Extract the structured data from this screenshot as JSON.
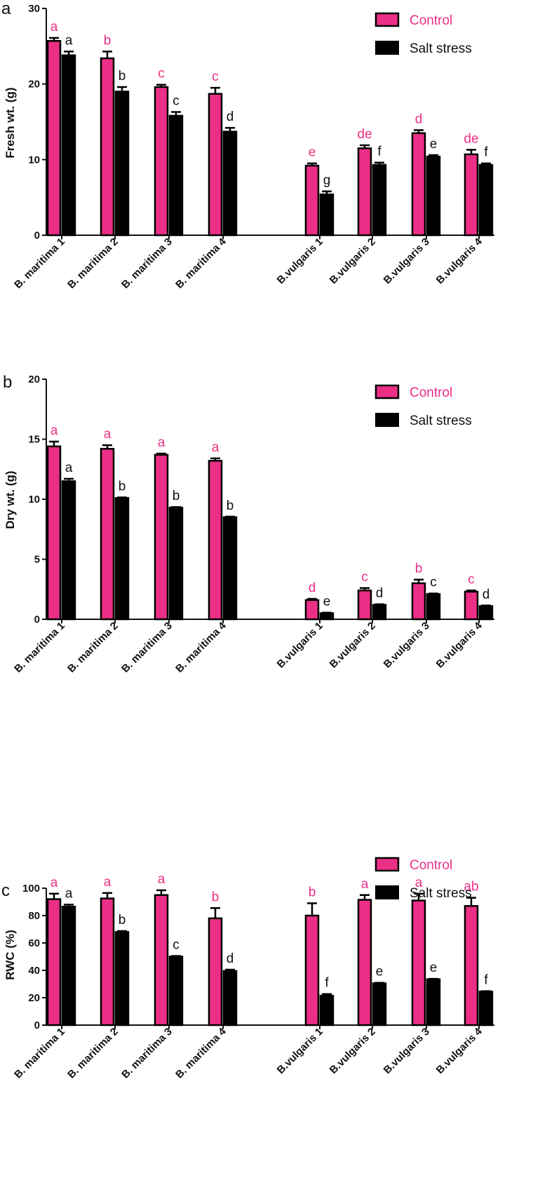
{
  "colors": {
    "control": "#ec2f86",
    "salt": "#000000",
    "axis": "#111111"
  },
  "chart_data": [
    {
      "panel": "a",
      "type": "bar",
      "ylabel": "Fresh wt. (g)",
      "ylim": [
        0,
        30
      ],
      "yticks": [
        0,
        10,
        20,
        30
      ],
      "categories": [
        "B. maritima 1",
        "B. maritima 2",
        "B. maritima 3",
        "B. maritima 4",
        "B.vulgaris 1",
        "B.vulgaris 2",
        "B.vulgaris 3",
        "B.vulgaris 4"
      ],
      "legend": [
        "Control",
        "Salt stress"
      ],
      "series": [
        {
          "name": "Control",
          "values": [
            25.7,
            23.4,
            19.6,
            18.7,
            9.2,
            11.5,
            13.5,
            10.7
          ],
          "errors": [
            0.4,
            0.9,
            0.3,
            0.8,
            0.3,
            0.4,
            0.4,
            0.6
          ],
          "letters": [
            "a",
            "b",
            "c",
            "c",
            "e",
            "de",
            "d",
            "de"
          ]
        },
        {
          "name": "Salt stress",
          "values": [
            23.8,
            19.0,
            15.8,
            13.7,
            5.4,
            9.3,
            10.4,
            9.3
          ],
          "errors": [
            0.5,
            0.6,
            0.5,
            0.5,
            0.4,
            0.3,
            0.2,
            0.2
          ],
          "letters": [
            "a",
            "b",
            "c",
            "d",
            "g",
            "f",
            "e",
            "f"
          ]
        }
      ]
    },
    {
      "panel": "b",
      "type": "bar",
      "ylabel": "Dry wt. (g)",
      "ylim": [
        0,
        20
      ],
      "yticks": [
        0,
        5,
        10,
        15,
        20
      ],
      "categories": [
        "B. maritima 1",
        "B. maritima 2",
        "B. maritima 3",
        "B. maritima 4",
        "B.vulgaris 1",
        "B.vulgaris 2",
        "B.vulgaris 3",
        "B.vulgaris 4"
      ],
      "legend": [
        "Control",
        "Salt stress"
      ],
      "series": [
        {
          "name": "Control",
          "values": [
            14.4,
            14.2,
            13.7,
            13.2,
            1.6,
            2.4,
            3.0,
            2.3
          ],
          "errors": [
            0.4,
            0.3,
            0.1,
            0.2,
            0.1,
            0.2,
            0.3,
            0.1
          ],
          "letters": [
            "a",
            "a",
            "a",
            "a",
            "d",
            "c",
            "b",
            "c"
          ]
        },
        {
          "name": "Salt stress",
          "values": [
            11.5,
            10.1,
            9.3,
            8.5,
            0.5,
            1.2,
            2.1,
            1.1
          ],
          "errors": [
            0.2,
            0.05,
            0.05,
            0.05,
            0.05,
            0.05,
            0.05,
            0.05
          ],
          "letters": [
            "a",
            "b",
            "b",
            "b",
            "e",
            "d",
            "c",
            "d"
          ]
        }
      ]
    },
    {
      "panel": "c",
      "type": "bar",
      "ylabel": "RWC (%)",
      "ylim": [
        0,
        100
      ],
      "yticks": [
        0,
        20,
        40,
        60,
        80,
        100
      ],
      "categories": [
        "B. maritima 1",
        "B. maritima 2",
        "B. maritima 3",
        "B. maritima 4",
        "B.vulgaris 1",
        "B.vulgaris 2",
        "B.vulgaris 3",
        "B.vulgaris 4"
      ],
      "legend": [
        "Control",
        "Salt stress"
      ],
      "series": [
        {
          "name": "Control",
          "values": [
            92,
            92.5,
            95,
            78,
            80,
            91.5,
            91,
            87
          ],
          "errors": [
            4,
            4,
            3.5,
            7.5,
            9,
            3.5,
            5,
            6
          ],
          "letters": [
            "a",
            "a",
            "a",
            "b",
            "b",
            "a",
            "a",
            "ab"
          ]
        },
        {
          "name": "Salt stress",
          "values": [
            86.5,
            68,
            50,
            39.5,
            21.5,
            30.5,
            33.5,
            24.5
          ],
          "errors": [
            1.5,
            0.7,
            0.5,
            1,
            1.2,
            0.4,
            0.3,
            0.3
          ],
          "letters": [
            "a",
            "b",
            "c",
            "d",
            "f",
            "e",
            "e",
            "f"
          ]
        }
      ]
    }
  ]
}
